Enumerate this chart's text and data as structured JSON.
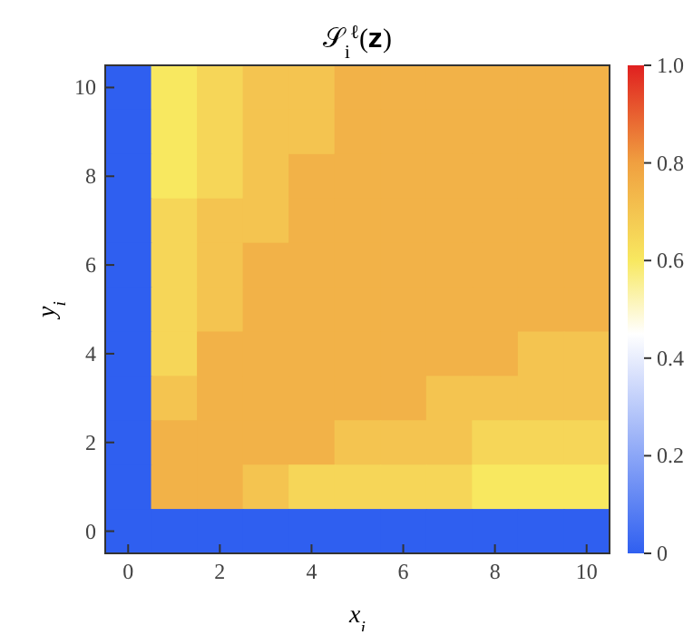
{
  "chart_data": {
    "type": "heatmap",
    "title": "𝒮$_{i}$$^{ℓ}$(𝐳)",
    "xlabel": "x$_{i}$",
    "ylabel": "y$_{i}$",
    "categories": [
      "0",
      null,
      "2",
      null,
      "4",
      null,
      "6",
      null,
      "8",
      null,
      "10"
    ],
    "y_categories": [
      "10",
      null,
      "8",
      null,
      "6",
      null,
      "4",
      null,
      "2",
      null,
      "0"
    ],
    "clim": [
      0,
      1
    ],
    "cticks": [
      0,
      0.2,
      0.4,
      0.6,
      0.8,
      {
        "value": 1,
        "label": "1.0"
      }
    ],
    "cells": [
      [
        0,
        0.6,
        0.65,
        0.7,
        0.7,
        0.75,
        0.75,
        0.75,
        0.75,
        0.75,
        0.75
      ],
      [
        0,
        0.6,
        0.65,
        0.7,
        0.7,
        0.75,
        0.75,
        0.75,
        0.75,
        0.75,
        0.75
      ],
      [
        0,
        0.6,
        0.65,
        0.7,
        0.75,
        0.75,
        0.75,
        0.75,
        0.75,
        0.75,
        0.75
      ],
      [
        0,
        0.65,
        0.7,
        0.7,
        0.75,
        0.75,
        0.75,
        0.75,
        0.75,
        0.75,
        0.75
      ],
      [
        0,
        0.65,
        0.7,
        0.75,
        0.75,
        0.75,
        0.75,
        0.75,
        0.75,
        0.75,
        0.75
      ],
      [
        0,
        0.65,
        0.7,
        0.75,
        0.75,
        0.75,
        0.75,
        0.75,
        0.75,
        0.75,
        0.75
      ],
      [
        0,
        0.65,
        0.75,
        0.75,
        0.75,
        0.75,
        0.75,
        0.75,
        0.75,
        0.7,
        0.7
      ],
      [
        0,
        0.7,
        0.75,
        0.75,
        0.75,
        0.75,
        0.75,
        0.7,
        0.7,
        0.7,
        0.7
      ],
      [
        0,
        0.75,
        0.75,
        0.75,
        0.75,
        0.7,
        0.7,
        0.7,
        0.65,
        0.65,
        0.65
      ],
      [
        0,
        0.75,
        0.75,
        0.7,
        0.65,
        0.65,
        0.65,
        0.65,
        0.6,
        0.6,
        0.6
      ],
      [
        0,
        0,
        0,
        0,
        0,
        0,
        0,
        0,
        0,
        0,
        0
      ]
    ]
  }
}
